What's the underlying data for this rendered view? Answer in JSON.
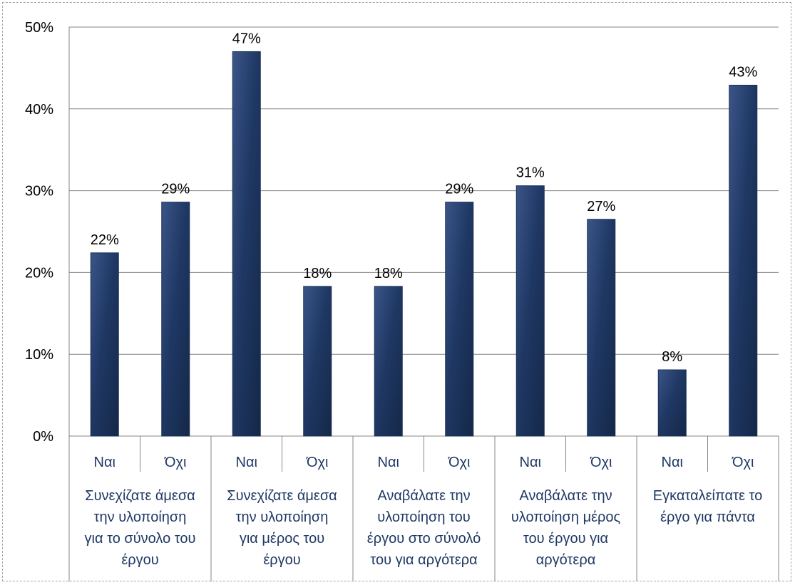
{
  "chart_data": {
    "type": "bar",
    "y_ticks": [
      "0%",
      "10%",
      "20%",
      "30%",
      "40%",
      "50%"
    ],
    "ylim": [
      0,
      50
    ],
    "grid": true,
    "bar_color": "#1f3864",
    "categories": [
      "Ναι",
      "Όχι",
      "Ναι",
      "Όχι",
      "Ναι",
      "Όχι",
      "Ναι",
      "Όχι",
      "Ναι",
      "Όχι"
    ],
    "values": [
      22.4,
      28.6,
      47,
      18.3,
      18.3,
      28.6,
      30.6,
      26.5,
      8.1,
      42.9
    ],
    "data_labels": [
      "22%",
      "29%",
      "47%",
      "18%",
      "18%",
      "29%",
      "31%",
      "27%",
      "8%",
      "43%"
    ],
    "groups": [
      {
        "lines": [
          "Συνεχίζατε άμεσα",
          "την υλοποίηση",
          "για το σύνολο του",
          "έργου"
        ]
      },
      {
        "lines": [
          "Συνεχίζατε άμεσα",
          "την υλοποίηση",
          "για μέρος του",
          "έργου"
        ]
      },
      {
        "lines": [
          "Αναβάλατε την",
          "υλοποίηση του",
          "έργου στο σύνολό",
          "του για αργότερα"
        ]
      },
      {
        "lines": [
          "Αναβάλατε την",
          "υλοποίηση μέρος",
          "του έργου για",
          "αργότερα"
        ]
      },
      {
        "lines": [
          "Εγκαταλείπατε το",
          "έργο για πάντα"
        ]
      }
    ]
  }
}
